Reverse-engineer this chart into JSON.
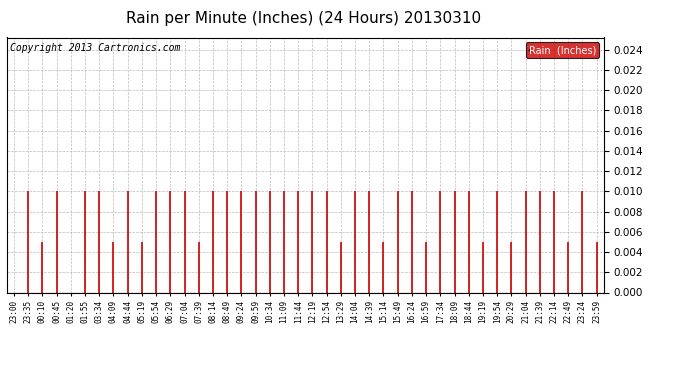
{
  "title": "Rain per Minute (Inches) (24 Hours) 20130310",
  "copyright": "Copyright 2013 Cartronics.com",
  "legend_label": "Rain  (Inches)",
  "ylim": [
    0,
    0.0252
  ],
  "yticks": [
    0.0,
    0.002,
    0.004,
    0.006,
    0.008,
    0.01,
    0.012,
    0.014,
    0.016,
    0.018,
    0.02,
    0.022,
    0.024
  ],
  "bar_color": "#cc0000",
  "bar_color2": "#880000",
  "legend_bg": "#cc0000",
  "legend_fg": "#ffffff",
  "background_color": "#ffffff",
  "grid_color": "#aaaaaa",
  "title_fontsize": 11,
  "copyright_fontsize": 7,
  "x_labels": [
    "23:00",
    "23:35",
    "00:10",
    "00:45",
    "01:20",
    "01:55",
    "03:34",
    "04:09",
    "04:44",
    "05:19",
    "05:54",
    "06:29",
    "07:04",
    "07:39",
    "08:14",
    "08:49",
    "09:24",
    "09:59",
    "10:34",
    "11:09",
    "11:44",
    "12:19",
    "12:54",
    "13:29",
    "14:04",
    "14:39",
    "15:14",
    "15:49",
    "16:24",
    "16:59",
    "17:34",
    "18:09",
    "18:44",
    "19:19",
    "19:54",
    "20:29",
    "21:04",
    "21:39",
    "22:14",
    "22:49",
    "23:24",
    "23:59"
  ],
  "bar_heights": [
    0.0,
    0.01,
    0.005,
    0.01,
    0.0,
    0.01,
    0.01,
    0.005,
    0.01,
    0.005,
    0.01,
    0.01,
    0.01,
    0.005,
    0.01,
    0.01,
    0.01,
    0.01,
    0.01,
    0.01,
    0.01,
    0.01,
    0.01,
    0.005,
    0.01,
    0.01,
    0.005,
    0.01,
    0.01,
    0.005,
    0.01,
    0.01,
    0.01,
    0.005,
    0.01,
    0.005,
    0.01,
    0.01,
    0.01,
    0.005,
    0.01,
    0.005
  ],
  "figwidth": 6.9,
  "figheight": 3.75,
  "dpi": 100
}
